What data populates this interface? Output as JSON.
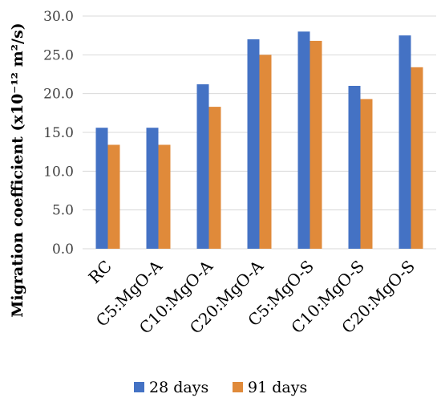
{
  "chart_data": {
    "type": "bar",
    "title": "",
    "xlabel": "",
    "ylabel": "Migration coefficient (x10⁻¹² m²/s)",
    "ylim": [
      0,
      30
    ],
    "yticks": [
      "0.0",
      "5.0",
      "10.0",
      "15.0",
      "20.0",
      "25.0",
      "30.0"
    ],
    "grid": "horizontal",
    "legend_position": "bottom",
    "categories": [
      "RC",
      "C5:MgO-A",
      "C10:MgO-A",
      "C20:MgO-A",
      "C5:MgO-S",
      "C10:MgO-S",
      "C20:MgO-S"
    ],
    "series": [
      {
        "name": "28 days",
        "color": "#4472C4",
        "values": [
          15.6,
          15.6,
          21.2,
          27.0,
          28.0,
          21.0,
          27.5
        ]
      },
      {
        "name": "91 days",
        "color": "#E08A3A",
        "values": [
          13.4,
          13.4,
          18.3,
          25.0,
          26.8,
          19.3,
          23.4
        ]
      }
    ]
  }
}
